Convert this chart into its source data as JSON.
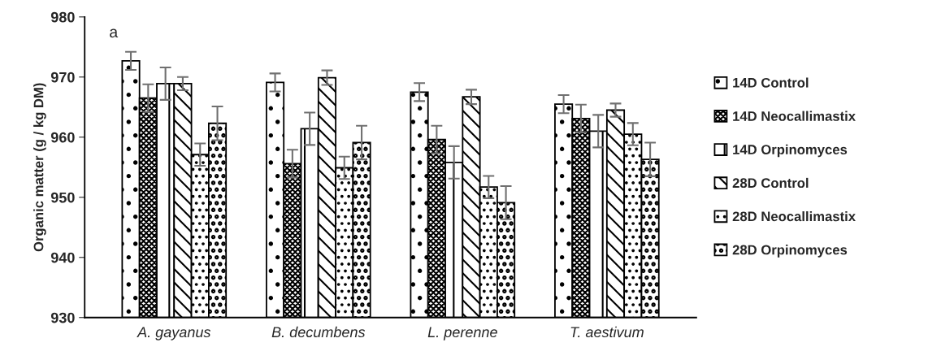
{
  "chart_data": {
    "type": "bar",
    "ylabel": "Organic matter (g / kg DM)",
    "categories": [
      "A. gayanus",
      "B. decumbens",
      "L. perenne",
      "T. aestivum"
    ],
    "series": [
      {
        "name": "14D Control",
        "values": [
          972.7,
          969.1,
          967.5,
          965.5
        ],
        "errors": [
          1.5,
          1.5,
          1.5,
          1.5
        ]
      },
      {
        "name": "14D Neocallimastix",
        "values": [
          966.5,
          955.6,
          959.6,
          963.1
        ],
        "errors": [
          2.3,
          2.3,
          2.3,
          2.3
        ]
      },
      {
        "name": "14D Orpinomyces",
        "values": [
          968.9,
          961.4,
          955.8,
          961.0
        ],
        "errors": [
          2.7,
          2.7,
          2.7,
          2.7
        ]
      },
      {
        "name": "28D Control",
        "values": [
          968.9,
          969.9,
          966.7,
          964.5
        ],
        "errors": [
          1.1,
          1.2,
          1.2,
          1.1
        ]
      },
      {
        "name": "28D Neocallimastix",
        "values": [
          957.1,
          954.9,
          951.7,
          960.5
        ],
        "errors": [
          1.85,
          1.85,
          1.85,
          1.85
        ]
      },
      {
        "name": "28D Orpinomyces",
        "values": [
          962.3,
          959.1,
          949.1,
          956.3
        ],
        "errors": [
          2.8,
          2.8,
          2.75,
          2.8
        ]
      }
    ],
    "ylim": [
      930,
      980
    ],
    "yticks": [
      930,
      940,
      950,
      960,
      970,
      980
    ],
    "annotations": [
      "a"
    ],
    "legend": "right",
    "grid": false
  }
}
